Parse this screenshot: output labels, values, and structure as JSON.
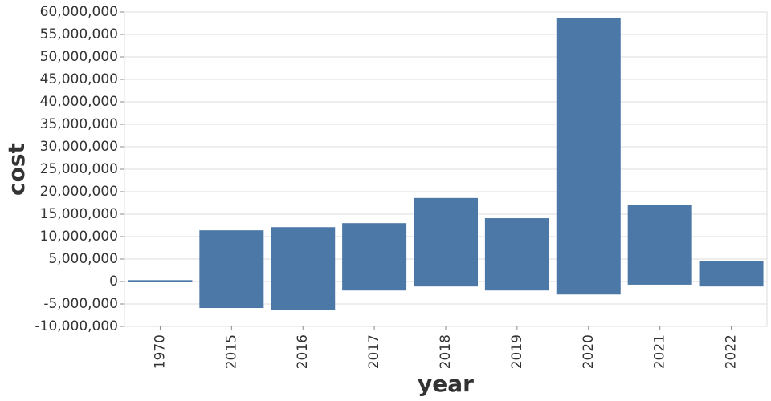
{
  "chart_data": {
    "type": "bar",
    "stacked": true,
    "x_label": "year",
    "y_label": "cost",
    "categories": [
      "1970",
      "2015",
      "2016",
      "2017",
      "2018",
      "2019",
      "2020",
      "2021",
      "2022"
    ],
    "series": [
      {
        "color": "#4c78a8",
        "values": [
          300000,
          11400000,
          12100000,
          13000000,
          18600000,
          14100000,
          58600000,
          17100000,
          4500000
        ]
      },
      {
        "color": "#4c78a8",
        "values": [
          0,
          -5900000,
          -6250000,
          -2000000,
          -1100000,
          -2000000,
          -2900000,
          -700000,
          -1100000
        ]
      }
    ],
    "ylim": [
      -10000000,
      60000000
    ],
    "yticks": [
      {
        "value": -10000000,
        "label": "-10,000,000"
      },
      {
        "value": -5000000,
        "label": "-5,000,000"
      },
      0,
      {
        "value": 5000000,
        "label": "5,000,000"
      },
      {
        "value": 10000000,
        "label": "10,000,000"
      },
      {
        "value": 15000000,
        "label": "15,000,000"
      },
      {
        "value": 20000000,
        "label": "20,000,000"
      },
      {
        "value": 25000000,
        "label": "25,000,000"
      },
      {
        "value": 30000000,
        "label": "30,000,000"
      },
      {
        "value": 35000000,
        "label": "35,000,000"
      },
      {
        "value": 40000000,
        "label": "40,000,000"
      },
      {
        "value": 45000000,
        "label": "45,000,000"
      },
      {
        "value": 50000000,
        "label": "50,000,000"
      },
      {
        "value": 55000000,
        "label": "55,000,000"
      },
      {
        "value": 60000000,
        "label": "60,000,000"
      }
    ],
    "grid": true
  }
}
